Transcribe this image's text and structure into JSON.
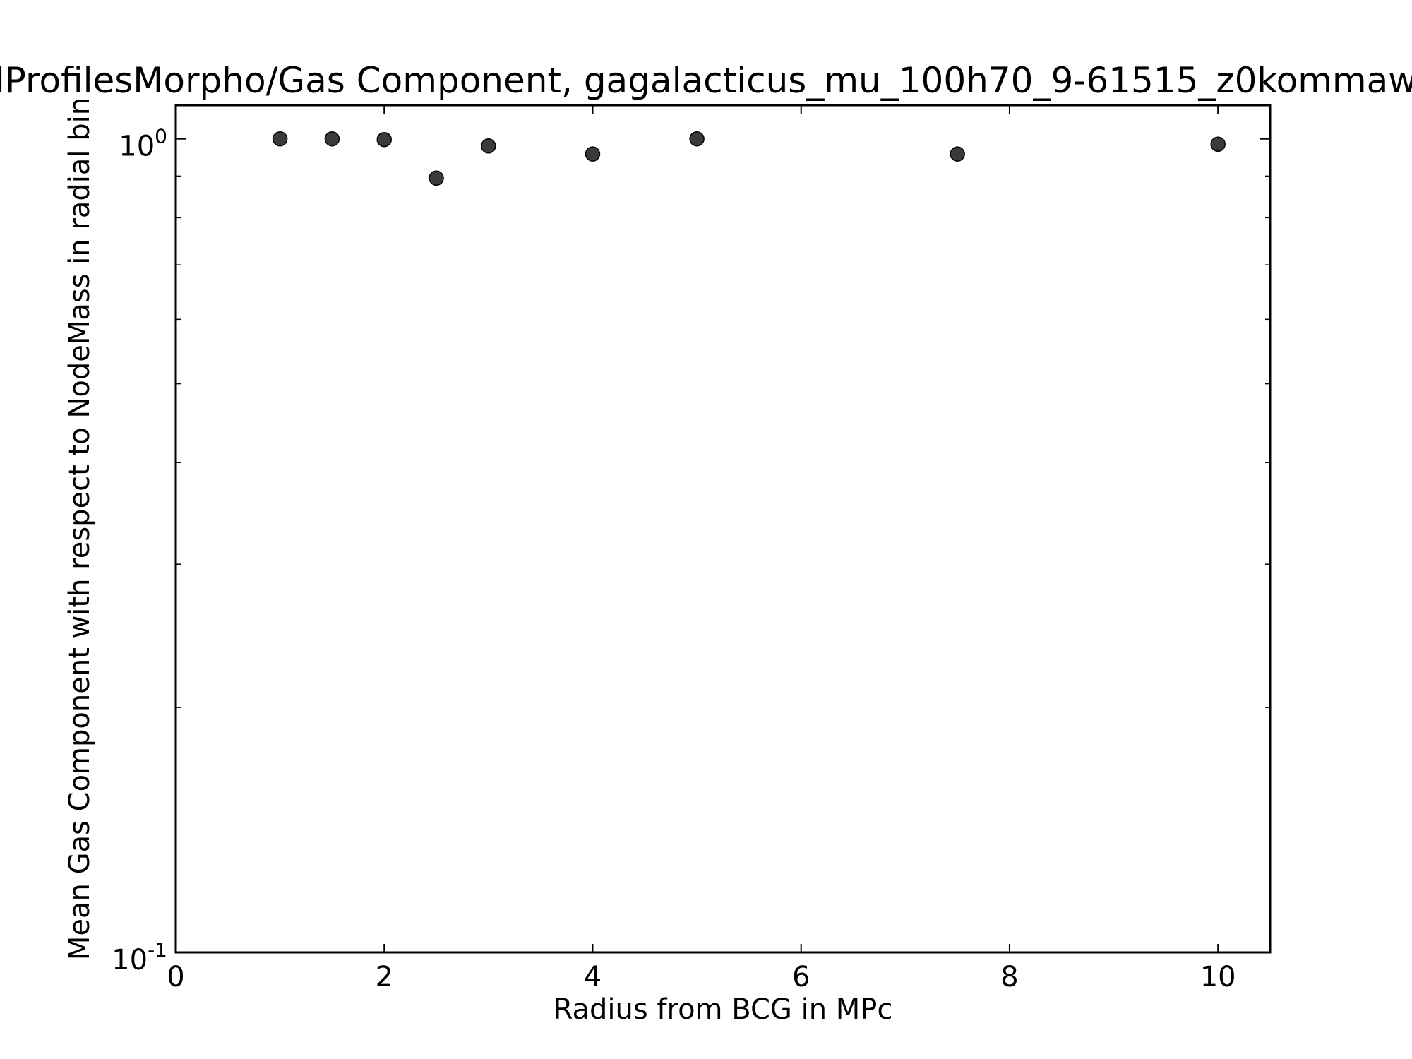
{
  "chart_data": {
    "type": "scatter",
    "title": "lProfilesMorpho/Gas Component, gagalacticus_mu_100h70_9-61515_z0kommaw",
    "xlabel": "Radius from BCG in MPc",
    "ylabel": "Mean Gas Component with respect to NodeMass in radial bin",
    "xlim": [
      0,
      10.5
    ],
    "ylim": [
      0.1,
      1.1
    ],
    "yscale": "log",
    "grid": false,
    "x_ticks": [
      0,
      2,
      4,
      6,
      8,
      10
    ],
    "x_tick_labels": [
      "0",
      "2",
      "4",
      "6",
      "8",
      "10"
    ],
    "y_ticks": [
      {
        "value": 1,
        "base": "10",
        "exp": "0"
      },
      {
        "value": 0.1,
        "base": "10",
        "exp": "-1"
      }
    ],
    "y_minor_ticks": [
      0.2,
      0.3,
      0.4,
      0.5,
      0.6,
      0.7,
      0.8,
      0.9
    ],
    "marker_color": "#3a3a3a",
    "marker_edge": "#000000",
    "points": [
      {
        "x": 1.0,
        "y": 1.0
      },
      {
        "x": 1.5,
        "y": 1.0
      },
      {
        "x": 2.0,
        "y": 0.998
      },
      {
        "x": 2.5,
        "y": 0.895
      },
      {
        "x": 3.0,
        "y": 0.98
      },
      {
        "x": 4.0,
        "y": 0.958
      },
      {
        "x": 5.0,
        "y": 1.0
      },
      {
        "x": 7.5,
        "y": 0.958
      },
      {
        "x": 10.0,
        "y": 0.985
      }
    ]
  }
}
